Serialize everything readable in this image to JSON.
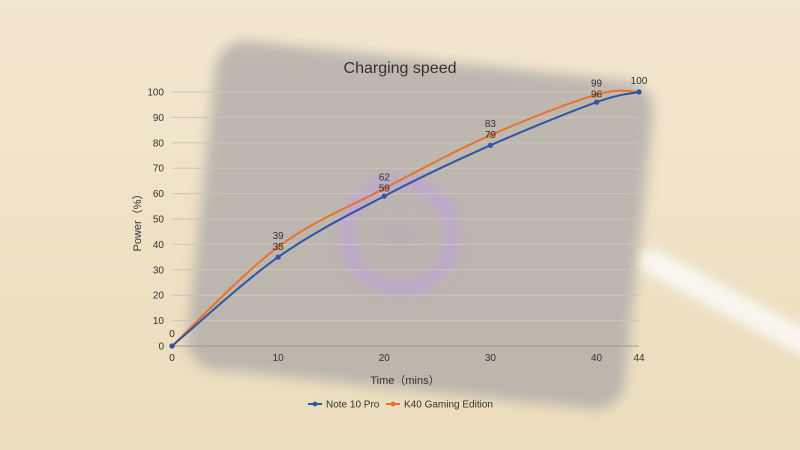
{
  "chart_data": {
    "type": "line",
    "title": "Charging speed",
    "xlabel": "Time（mins）",
    "ylabel": "Power（%）",
    "categories": [
      "0",
      "10",
      "20",
      "30",
      "40",
      "44"
    ],
    "ylim": [
      0,
      100
    ],
    "yticks": [
      "0",
      "10",
      "20",
      "30",
      "40",
      "50",
      "60",
      "70",
      "80",
      "90",
      "100"
    ],
    "grid": true,
    "legend_position": "bottom",
    "series": [
      {
        "name": "Note 10 Pro",
        "color": "#2f55a4",
        "values": [
          0,
          35,
          59,
          79,
          96,
          100
        ],
        "labels": [
          "",
          "35",
          "59",
          "79",
          "96",
          "100"
        ]
      },
      {
        "name": "K40 Gaming Edition",
        "color": "#e8732a",
        "values": [
          0,
          39,
          62,
          83,
          99,
          100
        ],
        "labels": [
          "0",
          "39",
          "62",
          "83",
          "99",
          ""
        ]
      }
    ]
  }
}
